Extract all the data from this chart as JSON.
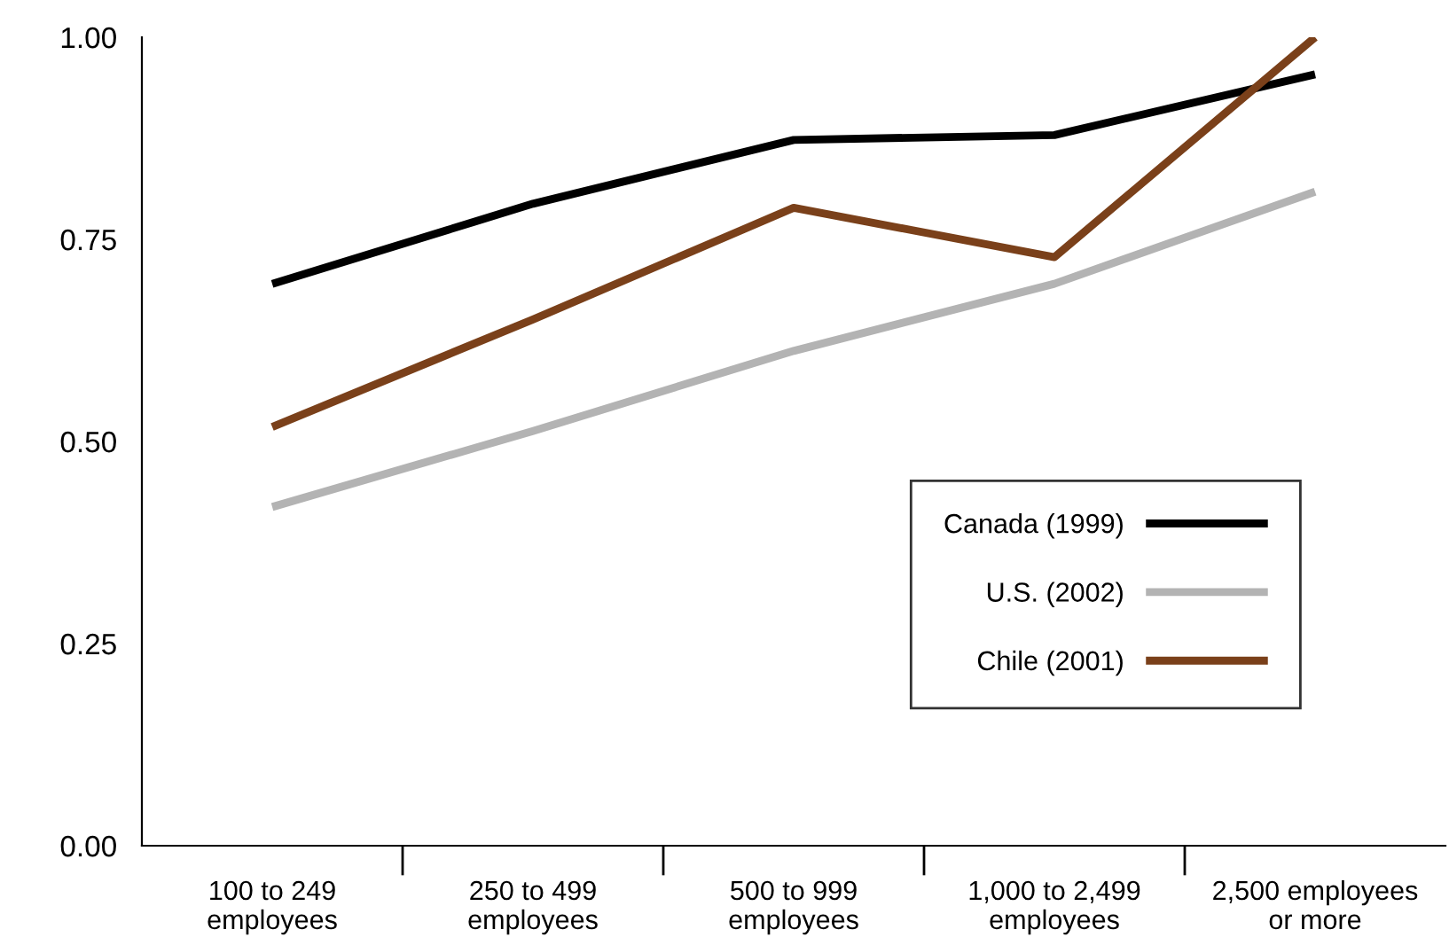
{
  "chart_data": {
    "type": "line",
    "categories": [
      "100 to 249\nemployees",
      "250 to 499\nemployees",
      "500 to 999\nemployees",
      "1,000 to 2,499\nemployees",
      "2,500 employees\nor more"
    ],
    "series": [
      {
        "name": "Canada (1999)",
        "color": "#000000",
        "values": [
          0.695,
          0.794,
          0.873,
          0.879,
          0.954
        ]
      },
      {
        "name": "U.S. (2002)",
        "color": "#b3b3b3",
        "values": [
          0.419,
          0.513,
          0.612,
          0.695,
          0.809
        ]
      },
      {
        "name": "Chile (2001)",
        "color": "#7a401a",
        "values": [
          0.518,
          0.651,
          0.789,
          0.728,
          1.0
        ]
      }
    ],
    "ylim": [
      0,
      1
    ],
    "yticks": [
      {
        "value": 0,
        "label": "0.00"
      },
      {
        "value": 0.25,
        "label": "0.25"
      },
      {
        "value": 0.5,
        "label": "0.50"
      },
      {
        "value": 0.75,
        "label": "0.75"
      },
      {
        "value": 1,
        "label": "1.00"
      }
    ],
    "legend": "bottom right",
    "grid": false,
    "marker": "none",
    "line_style": "solid"
  }
}
